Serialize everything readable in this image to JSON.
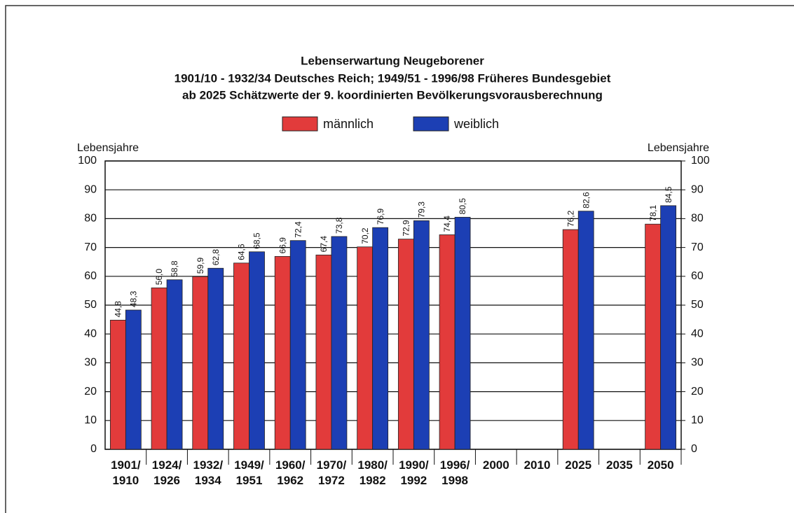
{
  "chart_data": {
    "type": "bar",
    "title": "Lebenserwartung Neugeborener",
    "subtitle": [
      "1901/10 - 1932/34 Deutsches Reich; 1949/51 - 1996/98 Früheres Bundesgebiet",
      "ab 2025 Schätzwerte der 9. koordinierten Bevölkerungsvorausberechnung"
    ],
    "ylabel": "Lebensjahre",
    "y2label": "Lebensjahre",
    "categories": [
      [
        "1901/",
        "1910"
      ],
      [
        "1924/",
        "1926"
      ],
      [
        "1932/",
        "1934"
      ],
      [
        "1949/",
        "1951"
      ],
      [
        "1960/",
        "1962"
      ],
      [
        "1970/",
        "1972"
      ],
      [
        "1980/",
        "1982"
      ],
      [
        "1990/",
        "1992"
      ],
      [
        "1996/",
        "1998"
      ],
      [
        "2000"
      ],
      [
        "2010"
      ],
      [
        "2025"
      ],
      [
        "2035"
      ],
      [
        "2050"
      ]
    ],
    "series": [
      {
        "name": "männlich",
        "color": "#e23b3b",
        "values": [
          44.8,
          56.0,
          59.9,
          64.6,
          66.9,
          67.4,
          70.2,
          72.9,
          74.4,
          null,
          null,
          76.2,
          null,
          78.1
        ],
        "value_labels": [
          "44,8",
          "56,0",
          "59,9",
          "64,6",
          "66,9",
          "67,4",
          "70,2",
          "72,9",
          "74,4",
          null,
          null,
          "76,2",
          null,
          "78,1"
        ]
      },
      {
        "name": "weiblich",
        "color": "#1c3fb4",
        "values": [
          48.3,
          58.8,
          62.8,
          68.5,
          72.4,
          73.8,
          76.9,
          79.3,
          80.5,
          null,
          null,
          82.6,
          null,
          84.5
        ],
        "value_labels": [
          "48,3",
          "58,8",
          "62,8",
          "68,5",
          "72,4",
          "73,8",
          "76,9",
          "79,3",
          "80,5",
          null,
          null,
          "82,6",
          null,
          "84,5"
        ]
      }
    ],
    "ylim": [
      0,
      100
    ],
    "yticks": [
      0,
      10,
      20,
      30,
      40,
      50,
      60,
      70,
      80,
      90,
      100
    ],
    "y2lim": [
      0,
      100
    ],
    "y2ticks": [
      0,
      10,
      20,
      30,
      40,
      50,
      60,
      70,
      80,
      90,
      100
    ],
    "grid": true,
    "legend": "top"
  }
}
